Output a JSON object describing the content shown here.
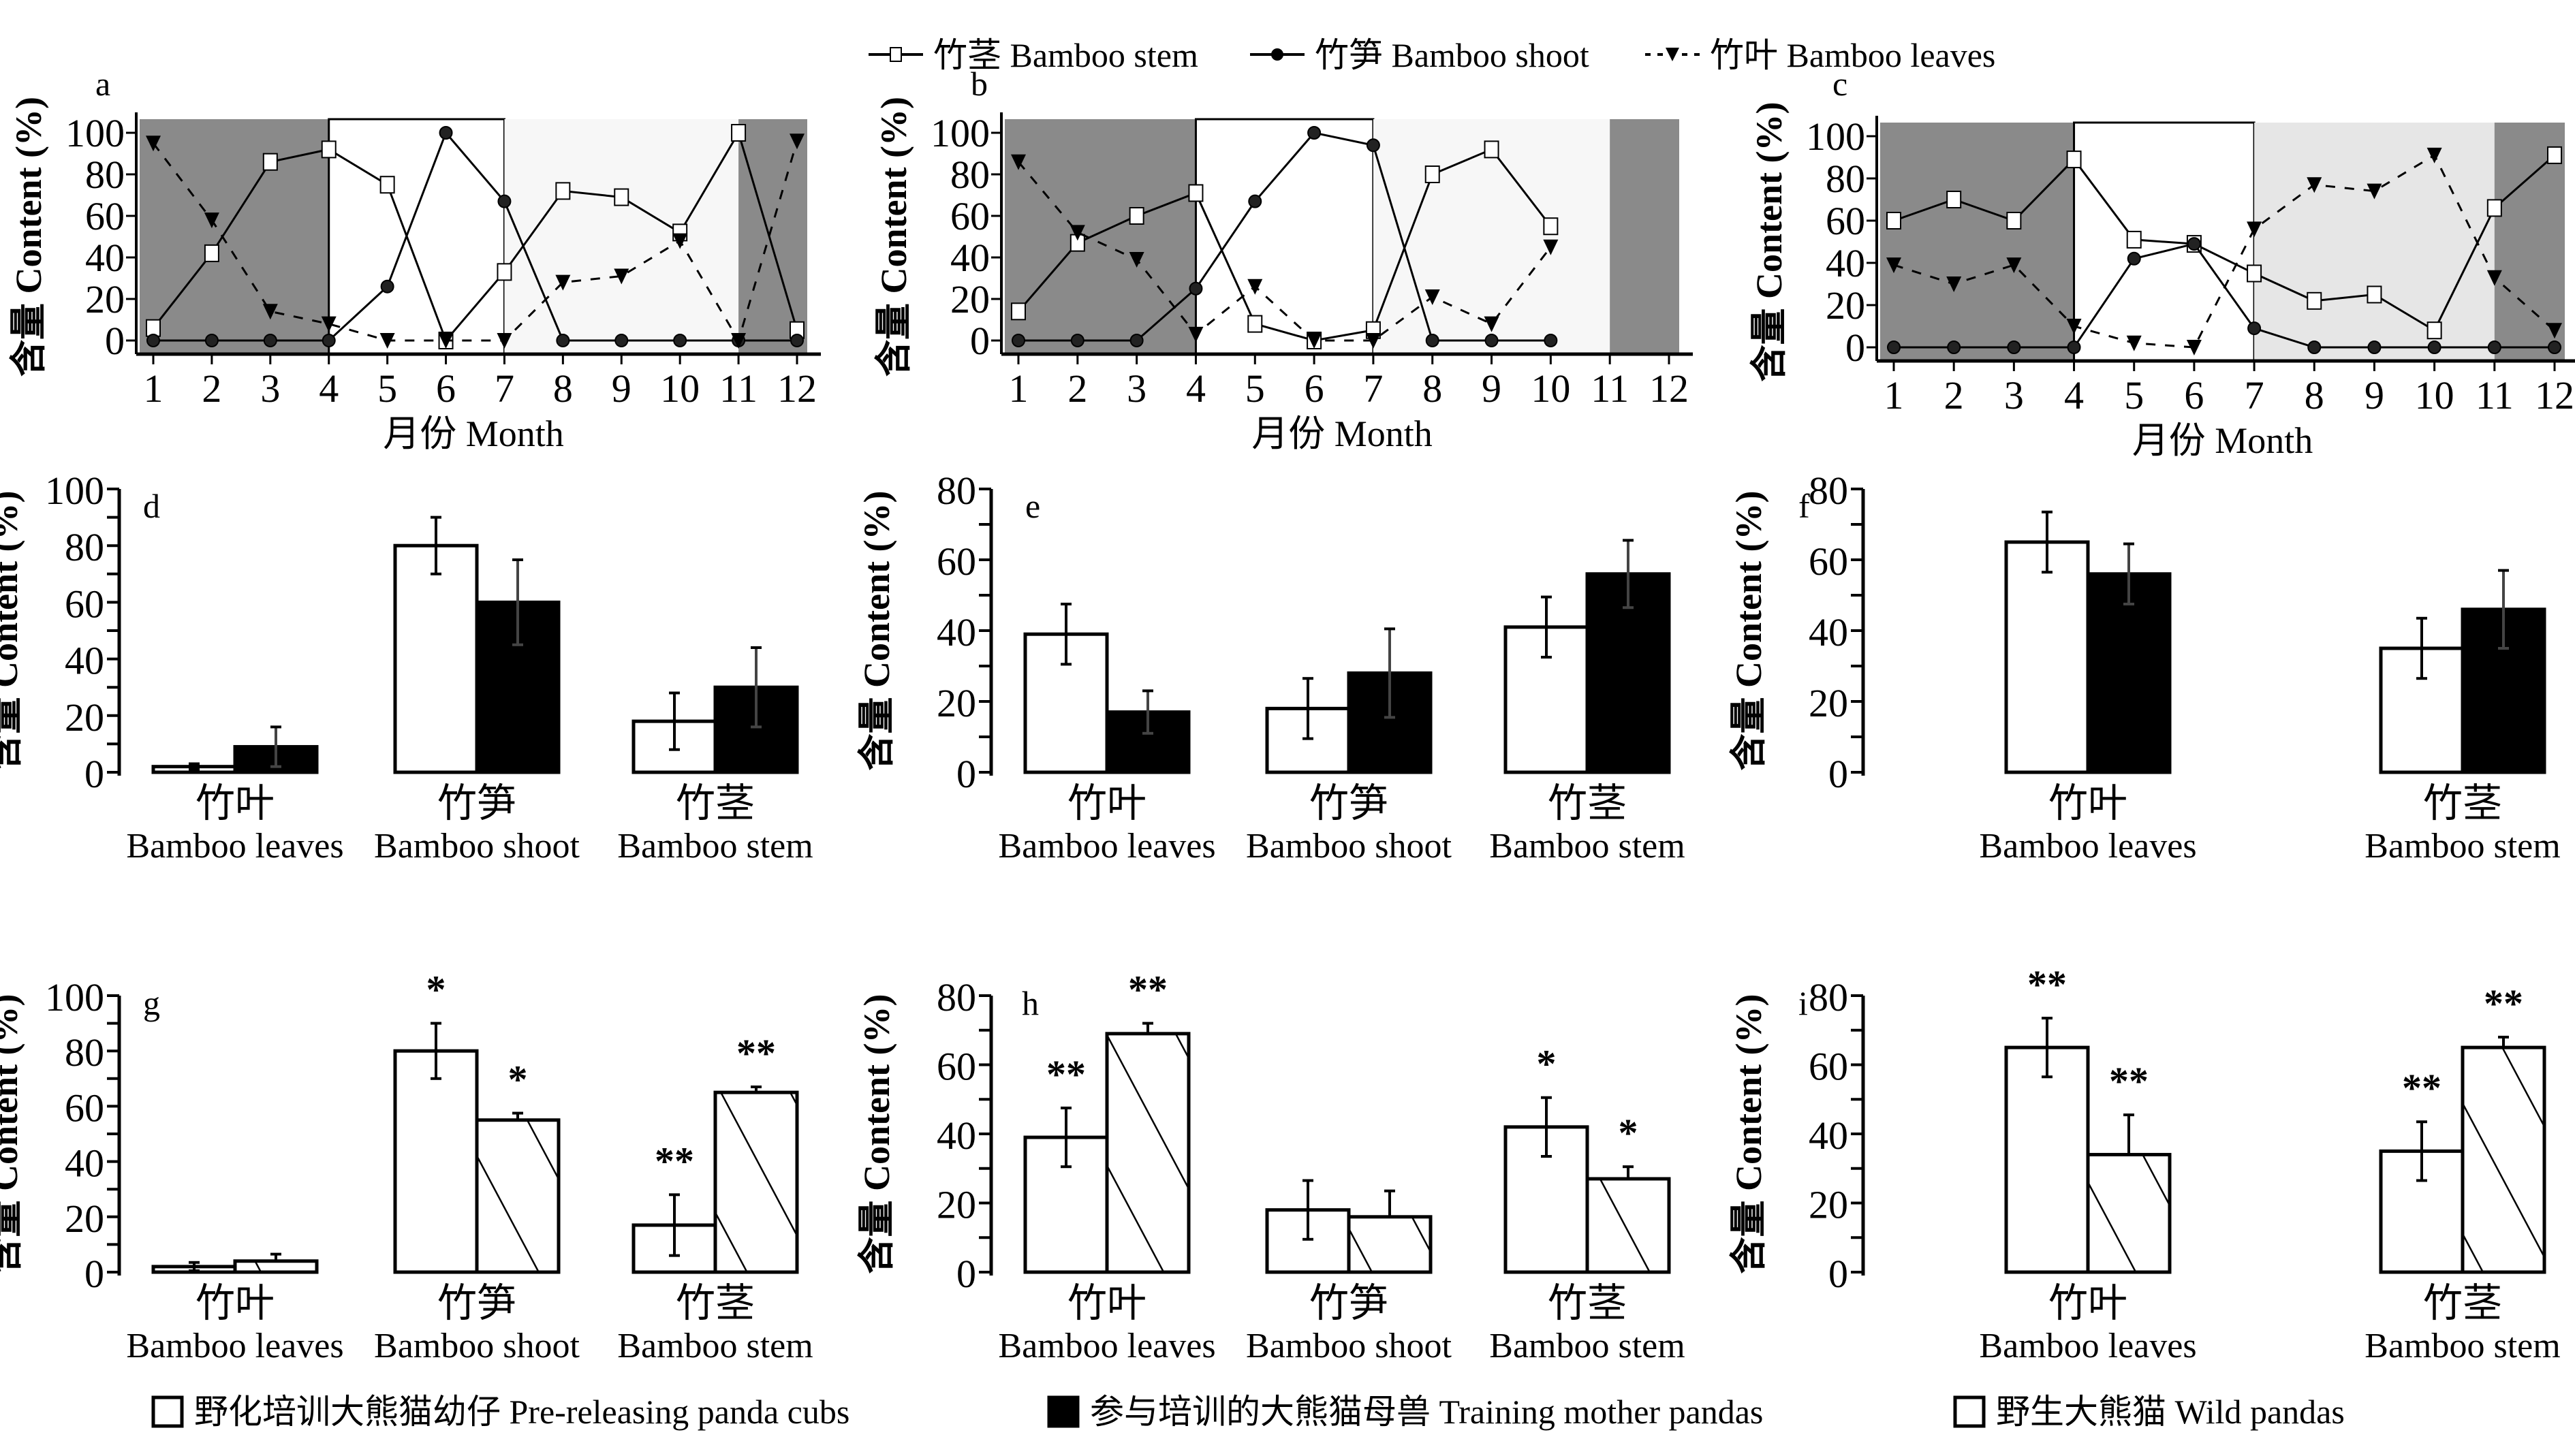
{
  "figure": {
    "top_legend": [
      {
        "label": "竹茎 Bamboo stem",
        "marker": "open-square",
        "line": "solid"
      },
      {
        "label": "竹笋 Bamboo shoot",
        "marker": "filled-circle",
        "line": "solid"
      },
      {
        "label": "竹叶 Bamboo leaves",
        "marker": "filled-down-triangle",
        "line": "dashed"
      }
    ],
    "bottom_legend": [
      {
        "label": "野化培训大熊猫幼仔 Pre-releasing panda cubs",
        "fill": "white"
      },
      {
        "label": "参与培训的大熊猫母兽 Training mother pandas",
        "fill": "black"
      },
      {
        "label": "野生大熊猫 Wild pandas",
        "fill": "hatched"
      }
    ],
    "ylabel": "含量 Content (%)",
    "month_xlabel": "月份 Month",
    "colors": {
      "dark_shade": "#8a8a8a",
      "light_shade": "#f7f7f7",
      "lighter_shade": "#e6e6e6",
      "ink": "#000000"
    }
  },
  "chart_data": [
    {
      "panel": "a",
      "type": "line",
      "xlabel": "月份 Month",
      "ylabel": "含量 Content (%)",
      "x": [
        1,
        2,
        3,
        4,
        5,
        6,
        7,
        8,
        9,
        10,
        11,
        12
      ],
      "ylim": [
        0,
        100
      ],
      "yticks": [
        0,
        20,
        40,
        60,
        80,
        100
      ],
      "xticks": [
        1,
        2,
        3,
        4,
        5,
        6,
        7,
        8,
        9,
        10,
        11,
        12
      ],
      "shading": [
        {
          "from": 1,
          "to": 4,
          "tone": "dark"
        },
        {
          "from": 4,
          "to": 7,
          "tone": "white"
        },
        {
          "from": 7,
          "to": 11,
          "tone": "light"
        },
        {
          "from": 11,
          "to": 12,
          "tone": "dark"
        }
      ],
      "series": [
        {
          "name": "竹茎 Bamboo stem",
          "values": [
            6,
            42,
            86,
            92,
            75,
            0,
            33,
            72,
            69,
            52,
            100,
            5
          ]
        },
        {
          "name": "竹笋 Bamboo shoot",
          "values": [
            0,
            0,
            0,
            0,
            26,
            100,
            67,
            0,
            0,
            0,
            0,
            0
          ]
        },
        {
          "name": "竹叶 Bamboo leaves",
          "values": [
            95,
            58,
            14,
            8,
            0,
            0,
            0,
            28,
            31,
            48,
            0,
            96
          ]
        }
      ]
    },
    {
      "panel": "b",
      "type": "line",
      "xlabel": "月份 Month",
      "ylabel": "含量 Content (%)",
      "x": [
        1,
        2,
        3,
        4,
        5,
        6,
        7,
        8,
        9,
        10
      ],
      "ylim": [
        0,
        100
      ],
      "yticks": [
        0,
        20,
        40,
        60,
        80,
        100
      ],
      "xticks": [
        1,
        2,
        3,
        4,
        5,
        6,
        7,
        8,
        9,
        10,
        11,
        12
      ],
      "shading": [
        {
          "from": 1,
          "to": 4,
          "tone": "dark"
        },
        {
          "from": 4,
          "to": 7,
          "tone": "white"
        },
        {
          "from": 7,
          "to": 11,
          "tone": "light"
        },
        {
          "from": 11,
          "to": 12,
          "tone": "dark"
        }
      ],
      "series": [
        {
          "name": "竹茎 Bamboo stem",
          "values": [
            14,
            47,
            60,
            71,
            8,
            0,
            5,
            80,
            92,
            55
          ]
        },
        {
          "name": "竹笋 Bamboo shoot",
          "values": [
            0,
            0,
            0,
            25,
            67,
            100,
            94,
            0,
            0,
            0
          ]
        },
        {
          "name": "竹叶 Bamboo leaves",
          "values": [
            86,
            52,
            39,
            3,
            26,
            0,
            0,
            21,
            8,
            45
          ]
        }
      ]
    },
    {
      "panel": "c",
      "type": "line",
      "xlabel": "月份 Month",
      "ylabel": "含量 Content (%)",
      "x": [
        1,
        2,
        3,
        4,
        5,
        6,
        7,
        8,
        9,
        10,
        11,
        12
      ],
      "ylim": [
        0,
        100
      ],
      "yticks": [
        0,
        20,
        40,
        60,
        80,
        100
      ],
      "xticks": [
        1,
        2,
        3,
        4,
        5,
        6,
        7,
        8,
        9,
        10,
        11,
        12
      ],
      "shading": [
        {
          "from": 1,
          "to": 4,
          "tone": "dark"
        },
        {
          "from": 4,
          "to": 7,
          "tone": "white"
        },
        {
          "from": 7,
          "to": 11,
          "tone": "lighter"
        },
        {
          "from": 11,
          "to": 12,
          "tone": "dark"
        }
      ],
      "series": [
        {
          "name": "竹茎 Bamboo stem",
          "values": [
            60,
            70,
            60,
            89,
            51,
            49,
            35,
            22,
            25,
            8,
            66,
            91
          ]
        },
        {
          "name": "竹笋 Bamboo shoot",
          "values": [
            0,
            0,
            0,
            0,
            42,
            49,
            9,
            0,
            0,
            0,
            0,
            0
          ]
        },
        {
          "name": "竹叶 Bamboo leaves",
          "values": [
            39,
            30,
            39,
            10,
            2,
            0,
            56,
            77,
            74,
            91,
            33,
            8
          ]
        }
      ]
    },
    {
      "panel": "d",
      "type": "bar",
      "ylabel": "含量 Content (%)",
      "ylim": [
        0,
        100
      ],
      "yticks": [
        0,
        20,
        40,
        60,
        80,
        100
      ],
      "categories": [
        {
          "cn": "竹叶",
          "en": "Bamboo leaves"
        },
        {
          "cn": "竹笋",
          "en": "Bamboo shoot"
        },
        {
          "cn": "竹茎",
          "en": "Bamboo stem"
        }
      ],
      "series": [
        {
          "name": "Pre-releasing panda cubs",
          "fill": "white",
          "values": [
            2,
            80,
            18
          ],
          "errors": [
            1,
            10,
            10
          ],
          "sig": [
            "",
            "",
            ""
          ]
        },
        {
          "name": "Training mother pandas",
          "fill": "black",
          "values": [
            9,
            60,
            30
          ],
          "errors": [
            7,
            15,
            14
          ],
          "sig": [
            "",
            "",
            ""
          ]
        }
      ]
    },
    {
      "panel": "e",
      "type": "bar",
      "ylabel": "含量 Content (%)",
      "ylim": [
        0,
        80
      ],
      "yticks": [
        0,
        20,
        40,
        60,
        80
      ],
      "categories": [
        {
          "cn": "竹叶",
          "en": "Bamboo leaves"
        },
        {
          "cn": "竹笋",
          "en": "Bamboo shoot"
        },
        {
          "cn": "竹茎",
          "en": "Bamboo stem"
        }
      ],
      "series": [
        {
          "name": "Pre-releasing panda cubs",
          "fill": "white",
          "values": [
            39,
            18,
            41
          ],
          "errors": [
            8.5,
            8.5,
            8.5
          ],
          "sig": [
            "",
            "",
            ""
          ]
        },
        {
          "name": "Training mother pandas",
          "fill": "black",
          "values": [
            17,
            28,
            56
          ],
          "errors": [
            6,
            12.5,
            9.5
          ],
          "sig": [
            "",
            "",
            ""
          ]
        }
      ]
    },
    {
      "panel": "f",
      "type": "bar",
      "ylabel": "含量 Content (%)",
      "ylim": [
        0,
        80
      ],
      "yticks": [
        0,
        20,
        40,
        60,
        80
      ],
      "categories": [
        {
          "cn": "竹叶",
          "en": "Bamboo leaves"
        },
        {
          "cn": "竹茎",
          "en": "Bamboo stem"
        }
      ],
      "series": [
        {
          "name": "Pre-releasing panda cubs",
          "fill": "white",
          "values": [
            65,
            35
          ],
          "errors": [
            8.5,
            8.5
          ],
          "sig": [
            "",
            ""
          ]
        },
        {
          "name": "Training mother pandas",
          "fill": "black",
          "values": [
            56,
            46
          ],
          "errors": [
            8.5,
            11
          ],
          "sig": [
            "",
            ""
          ]
        }
      ]
    },
    {
      "panel": "g",
      "type": "bar",
      "ylabel": "含量 Content (%)",
      "ylim": [
        0,
        100
      ],
      "yticks": [
        0,
        20,
        40,
        60,
        80,
        100
      ],
      "categories": [
        {
          "cn": "竹叶",
          "en": "Bamboo leaves"
        },
        {
          "cn": "竹笋",
          "en": "Bamboo shoot"
        },
        {
          "cn": "竹茎",
          "en": "Bamboo stem"
        }
      ],
      "series": [
        {
          "name": "Pre-releasing panda cubs",
          "fill": "white",
          "values": [
            2,
            80,
            17
          ],
          "errors": [
            1.5,
            10,
            11
          ],
          "sig": [
            "",
            "*",
            "**"
          ]
        },
        {
          "name": "Wild pandas",
          "fill": "hatched",
          "values": [
            4,
            55,
            65
          ],
          "errors": [
            2.5,
            2.5,
            2
          ],
          "sig": [
            "",
            "*",
            "**"
          ]
        }
      ]
    },
    {
      "panel": "h",
      "type": "bar",
      "ylabel": "含量 Content (%)",
      "ylim": [
        0,
        80
      ],
      "yticks": [
        0,
        20,
        40,
        60,
        80
      ],
      "categories": [
        {
          "cn": "竹叶",
          "en": "Bamboo leaves"
        },
        {
          "cn": "竹笋",
          "en": "Bamboo shoot"
        },
        {
          "cn": "竹茎",
          "en": "Bamboo stem"
        }
      ],
      "series": [
        {
          "name": "Pre-releasing panda cubs",
          "fill": "white",
          "values": [
            39,
            18,
            42
          ],
          "errors": [
            8.5,
            8.5,
            8.5
          ],
          "sig": [
            "**",
            "",
            "*"
          ]
        },
        {
          "name": "Wild pandas",
          "fill": "hatched",
          "values": [
            69,
            16,
            27
          ],
          "errors": [
            3,
            7.5,
            3.5
          ],
          "sig": [
            "**",
            "",
            "*"
          ]
        }
      ]
    },
    {
      "panel": "i",
      "type": "bar",
      "ylabel": "含量 Content (%)",
      "ylim": [
        0,
        80
      ],
      "yticks": [
        0,
        20,
        40,
        60,
        80
      ],
      "categories": [
        {
          "cn": "竹叶",
          "en": "Bamboo leaves"
        },
        {
          "cn": "竹茎",
          "en": "Bamboo stem"
        }
      ],
      "series": [
        {
          "name": "Pre-releasing panda cubs",
          "fill": "white",
          "values": [
            65,
            35
          ],
          "errors": [
            8.5,
            8.5
          ],
          "sig": [
            "**",
            "**"
          ]
        },
        {
          "name": "Wild pandas",
          "fill": "hatched",
          "values": [
            34,
            65
          ],
          "errors": [
            11.5,
            3
          ],
          "sig": [
            "**",
            "**"
          ]
        }
      ]
    }
  ]
}
